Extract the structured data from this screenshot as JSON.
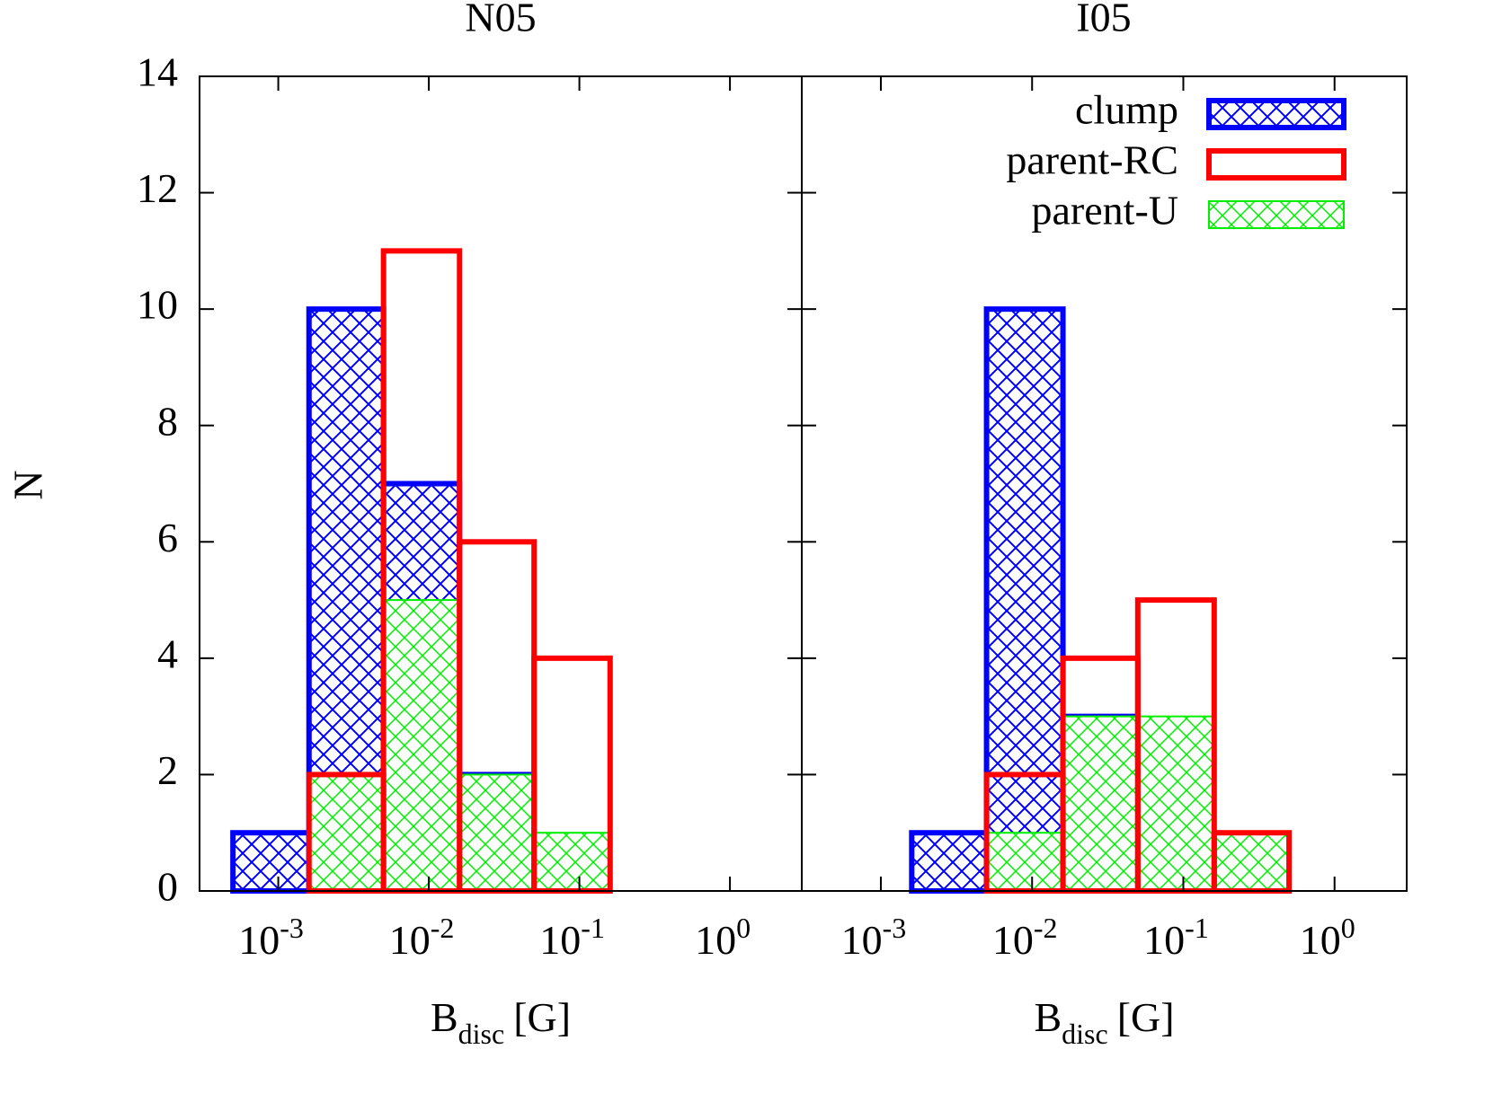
{
  "chart_data": [
    {
      "type": "histogram",
      "title": "N05",
      "ylabel": "N",
      "xlabel": {
        "main": "B",
        "subscript": "disc",
        "unit": "[G]"
      },
      "xscale": "log",
      "xlim": [
        0.0003,
        3
      ],
      "xticks": [
        {
          "value": 0.001,
          "label": "10",
          "exponent": "-3"
        },
        {
          "value": 0.01,
          "label": "10",
          "exponent": "-2"
        },
        {
          "value": 0.1,
          "label": "10",
          "exponent": "-1"
        },
        {
          "value": 1,
          "label": "10",
          "exponent": "0"
        }
      ],
      "ylim": [
        0,
        14
      ],
      "yticks": [
        0,
        2,
        4,
        6,
        8,
        10,
        12,
        14
      ],
      "ytick_labels": true,
      "bins": [
        0.0005,
        0.0016,
        0.005,
        0.016,
        0.05,
        0.16,
        0.5
      ],
      "series": [
        {
          "color": "#0000ff",
          "hatch": "crosshatch",
          "values": [
            1,
            10,
            7,
            2,
            0,
            0
          ]
        },
        {
          "color": "#00ee00",
          "hatch": "crosshatch",
          "values": [
            0,
            2,
            5,
            2,
            1,
            0
          ]
        },
        {
          "color": "#ff0000",
          "hatch": "none",
          "values": [
            0,
            2,
            11,
            6,
            4,
            0
          ]
        }
      ]
    },
    {
      "type": "histogram",
      "title": "I05",
      "xlabel": {
        "main": "B",
        "subscript": "disc",
        "unit": "[G]"
      },
      "xscale": "log",
      "xlim": [
        0.0003,
        3
      ],
      "xticks": [
        {
          "value": 0.001,
          "label": "10",
          "exponent": "-3"
        },
        {
          "value": 0.01,
          "label": "10",
          "exponent": "-2"
        },
        {
          "value": 0.1,
          "label": "10",
          "exponent": "-1"
        },
        {
          "value": 1,
          "label": "10",
          "exponent": "0"
        }
      ],
      "ylim": [
        0,
        14
      ],
      "yticks": [
        0,
        2,
        4,
        6,
        8,
        10,
        12,
        14
      ],
      "ytick_labels": false,
      "bins": [
        0.0005,
        0.0016,
        0.005,
        0.016,
        0.05,
        0.16,
        0.5
      ],
      "legend": "top right",
      "series": [
        {
          "name": "clump",
          "color": "#0000ff",
          "hatch": "crosshatch",
          "values": [
            0,
            1,
            10,
            3,
            0,
            0
          ]
        },
        {
          "name": "parent-U",
          "color": "#00ee00",
          "hatch": "crosshatch",
          "values": [
            0,
            0,
            1,
            3,
            3,
            1
          ]
        },
        {
          "name": "parent-RC",
          "color": "#ff0000",
          "hatch": "none",
          "values": [
            0,
            0,
            2,
            4,
            5,
            1
          ]
        }
      ]
    }
  ]
}
